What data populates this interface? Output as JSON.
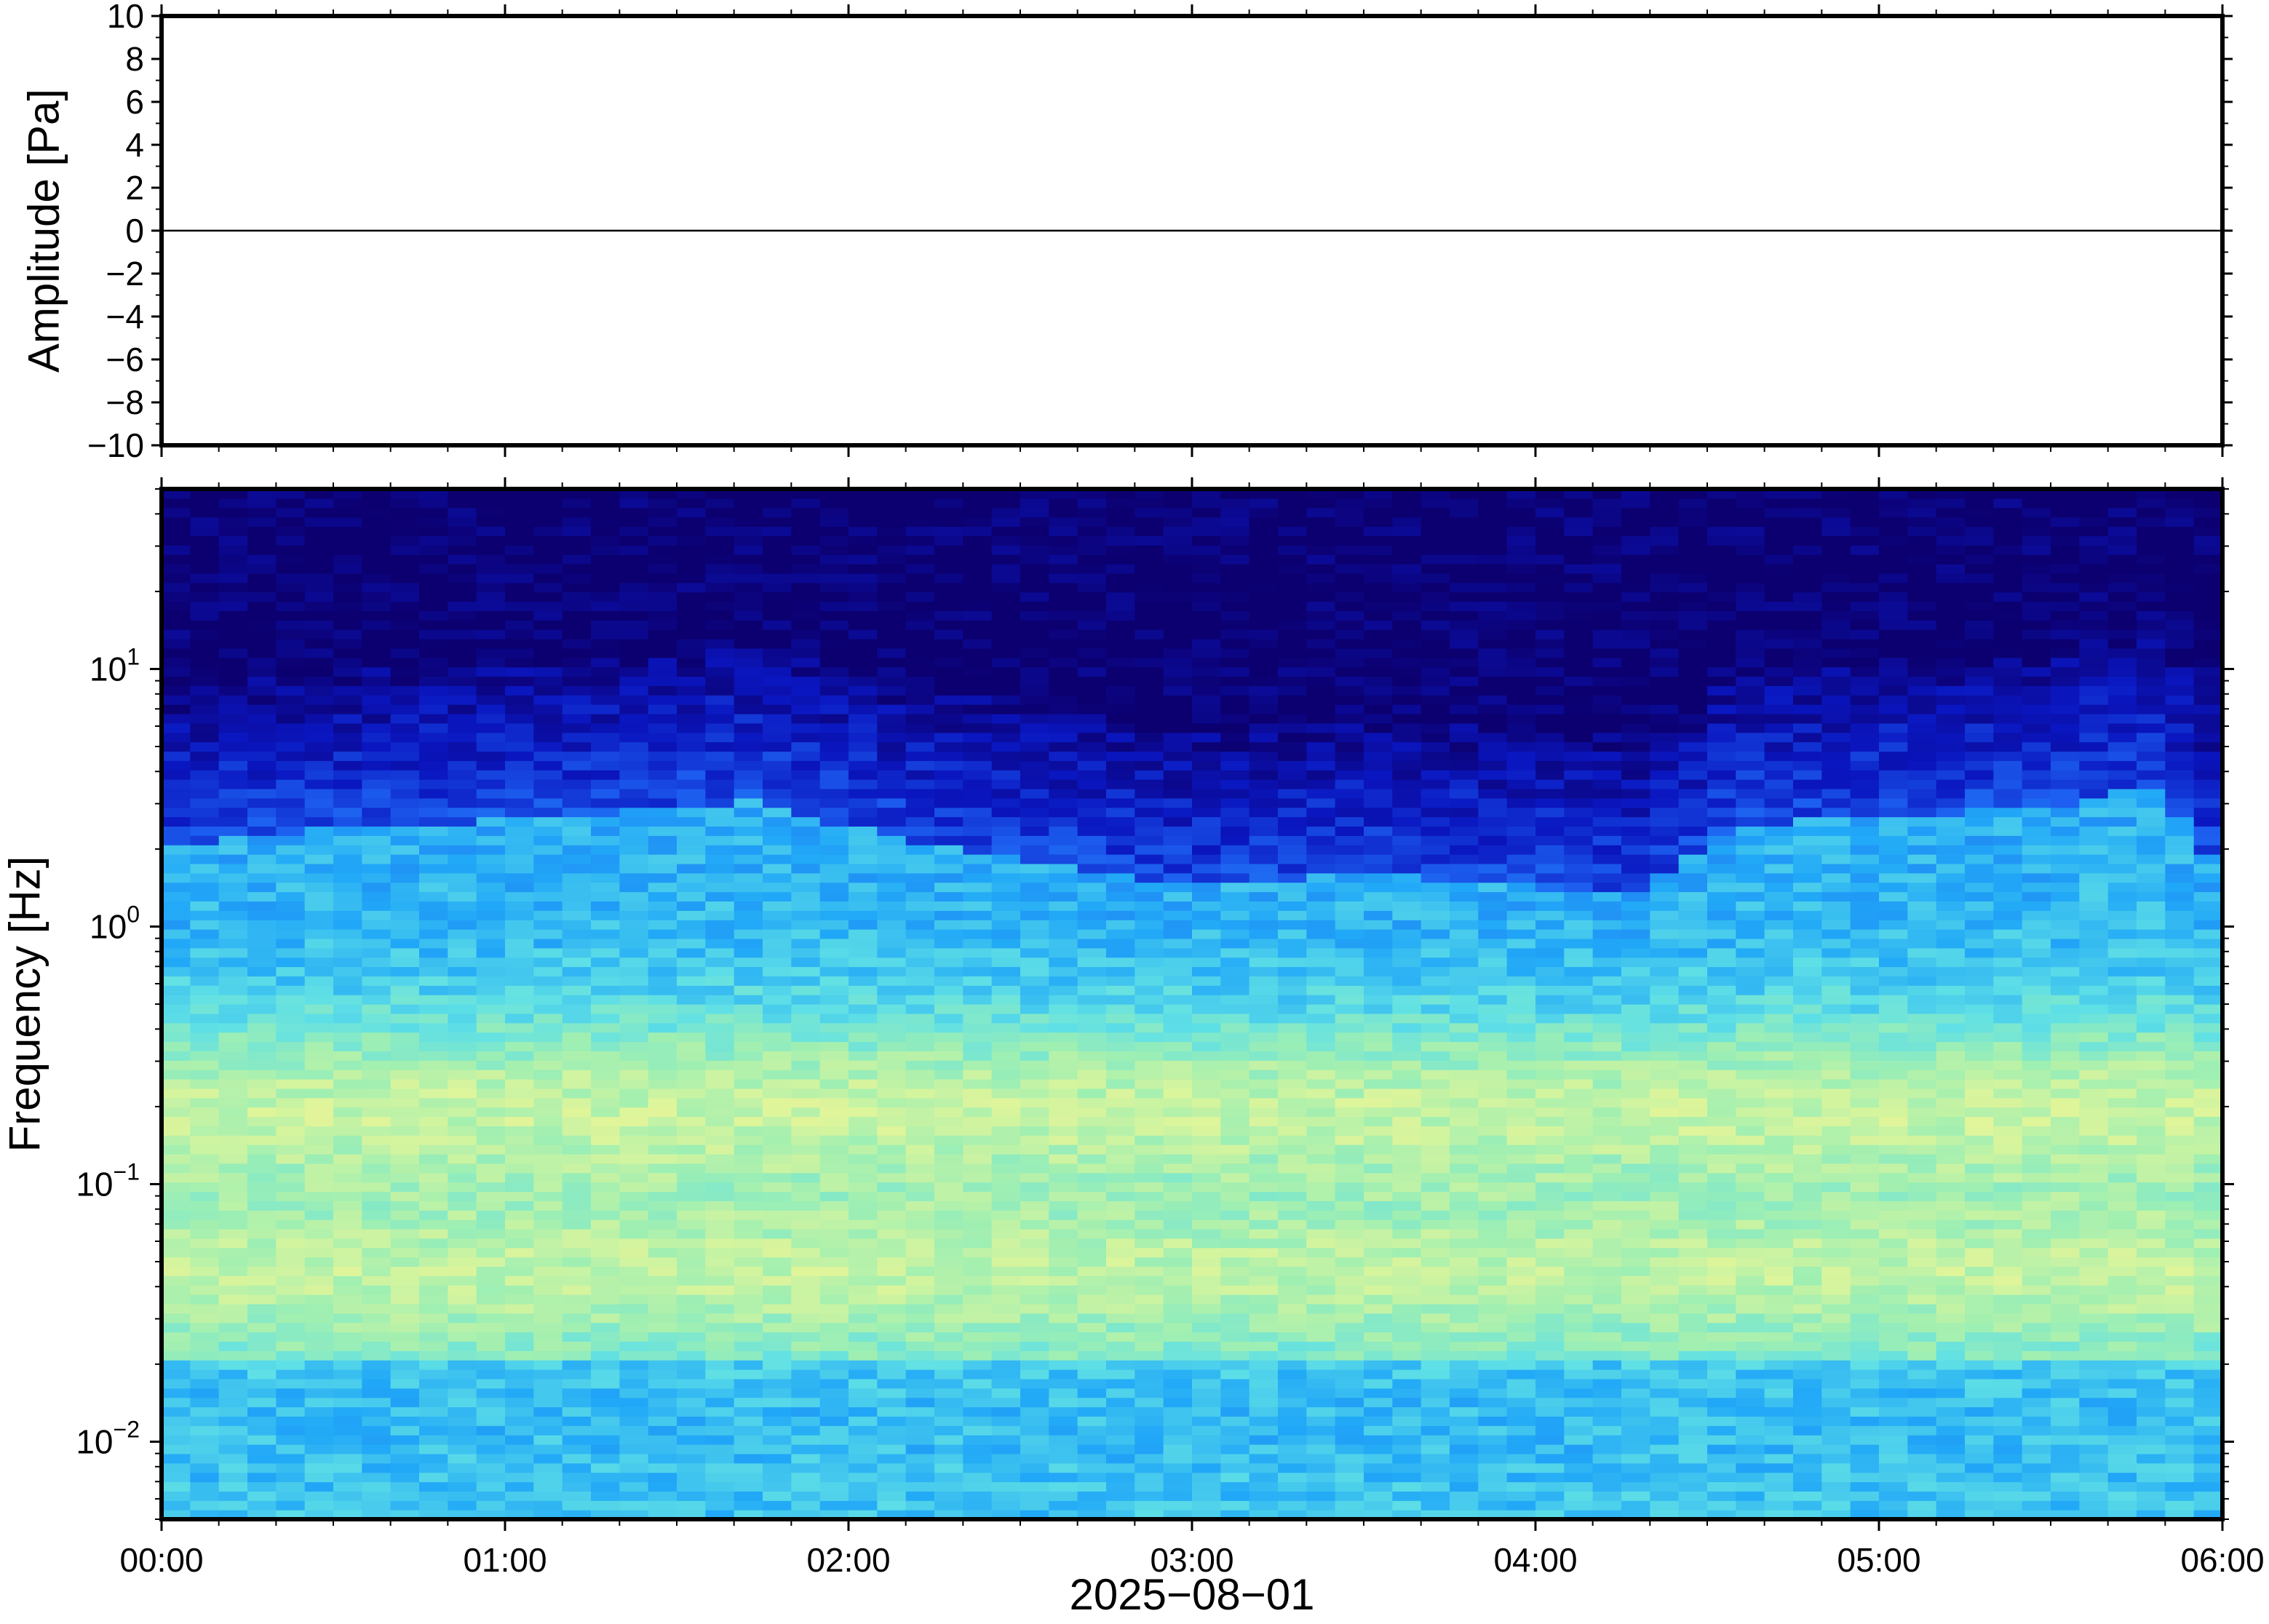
{
  "chart_data": [
    {
      "type": "line",
      "panel": "waveform",
      "ylabel": "Amplitude [Pa]",
      "ylim": [
        -10,
        10
      ],
      "yticks": [
        10,
        8,
        6,
        4,
        2,
        0,
        -2,
        -4,
        -6,
        -8,
        -10
      ],
      "ytick_labels": [
        "10",
        "8",
        "6",
        "4",
        "2",
        "0",
        "−2",
        "−4",
        "−6",
        "−8",
        "−10"
      ],
      "xlim": [
        "00:00",
        "06:00"
      ],
      "series": [
        {
          "x_hours": [
            0,
            0.5,
            1,
            1.5,
            2,
            2.5,
            3,
            3.5,
            4,
            4.5,
            5,
            5.5,
            6
          ],
          "values": [
            0,
            0,
            0,
            0,
            0,
            0,
            0,
            0,
            0,
            0,
            0,
            0,
            0
          ],
          "color": "#000000"
        }
      ]
    },
    {
      "type": "heatmap",
      "panel": "spectrogram",
      "ylabel": "Frequency [Hz]",
      "yscale": "log",
      "ylim_hz": [
        0.005,
        50
      ],
      "yticks_hz": [
        10,
        1,
        0.1,
        0.01
      ],
      "ytick_labels": [
        {
          "base": "10",
          "exp": "1"
        },
        {
          "base": "10",
          "exp": "0"
        },
        {
          "base": "10",
          "exp": "−1"
        },
        {
          "base": "10",
          "exp": "−2"
        }
      ],
      "xlabel": "2025−08−01",
      "xlim_hours": [
        0,
        6
      ],
      "xticks": [
        "00:00",
        "01:00",
        "02:00",
        "03:00",
        "04:00",
        "05:00",
        "06:00"
      ],
      "colormap": [
        "#0c0070",
        "#0a16c0",
        "#1d5ff0",
        "#21a8f7",
        "#5fe0e6",
        "#9fefb2",
        "#e0f59a",
        "#f6e79a"
      ],
      "upper_energy_edge_hz": {
        "hours": [
          0,
          0.5,
          1,
          1.5,
          1.75,
          2,
          2.5,
          3,
          3.5,
          4,
          4.3,
          4.6,
          5,
          5.5,
          5.8,
          6
        ],
        "hz": [
          4.5,
          5.5,
          5.8,
          6.5,
          7,
          5.5,
          4,
          3.2,
          3.6,
          3.2,
          3,
          5.5,
          6,
          6.5,
          8,
          3.5
        ]
      }
    }
  ]
}
